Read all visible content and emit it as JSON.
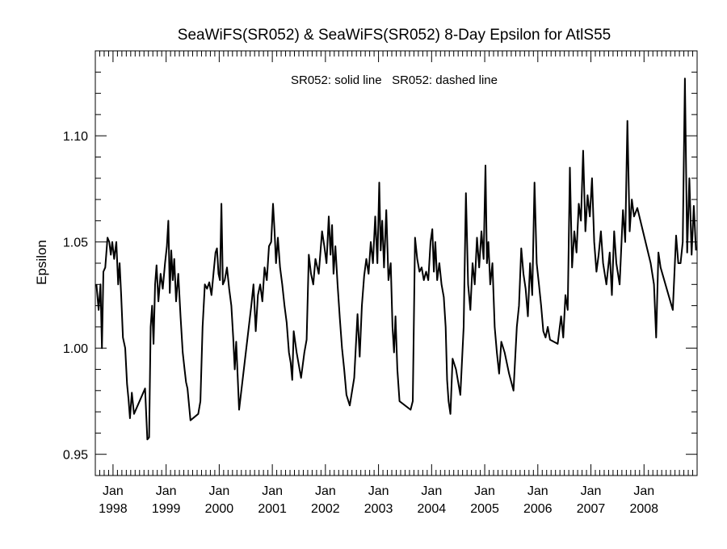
{
  "chart_data": {
    "type": "line",
    "title": "SeaWiFS(SR052) & SeaWiFS(SR052) 8-Day Epsilon for AtlS55",
    "annotation": "SR052: solid line   SR052: dashed line",
    "xlabel": "",
    "ylabel": "Epsilon",
    "xlim": [
      "1997-09",
      "2008-12"
    ],
    "ylim": [
      0.94,
      1.14
    ],
    "grid": false,
    "y_ticks": [
      {
        "value": 0.95,
        "label": "0.95"
      },
      {
        "value": 1.0,
        "label": "1.00"
      },
      {
        "value": 1.05,
        "label": "1.05"
      },
      {
        "value": 1.1,
        "label": "1.10"
      }
    ],
    "x_ticks": [
      {
        "month": "Jan",
        "year": "1998",
        "date": "1998-01"
      },
      {
        "month": "Jan",
        "year": "1999",
        "date": "1999-01"
      },
      {
        "month": "Jan",
        "year": "2000",
        "date": "2000-01"
      },
      {
        "month": "Jan",
        "year": "2001",
        "date": "2001-01"
      },
      {
        "month": "Jan",
        "year": "2002",
        "date": "2002-01"
      },
      {
        "month": "Jan",
        "year": "2003",
        "date": "2003-01"
      },
      {
        "month": "Jan",
        "year": "2004",
        "date": "2004-01"
      },
      {
        "month": "Jan",
        "year": "2005",
        "date": "2005-01"
      },
      {
        "month": "Jan",
        "year": "2006",
        "date": "2006-01"
      },
      {
        "month": "Jan",
        "year": "2007",
        "date": "2007-01"
      },
      {
        "month": "Jan",
        "year": "2008",
        "date": "2008-01"
      }
    ],
    "series": [
      {
        "style": "solid",
        "color": "#000000",
        "points": [
          [
            "1997-09",
            1.03
          ],
          [
            "1997-09",
            1.018
          ],
          [
            "1997-10",
            1.03
          ],
          [
            "1997-10",
            1.0
          ],
          [
            "1997-10",
            1.036
          ],
          [
            "1997-11",
            1.038
          ],
          [
            "1997-11",
            1.052
          ],
          [
            "1997-12",
            1.05
          ],
          [
            "1997-12",
            1.044
          ],
          [
            "1997-12",
            1.05
          ],
          [
            "1998-01",
            1.042
          ],
          [
            "1998-01",
            1.05
          ],
          [
            "1998-02",
            1.03
          ],
          [
            "1998-02",
            1.04
          ],
          [
            "1998-02",
            1.025
          ],
          [
            "1998-03",
            1.005
          ],
          [
            "1998-03",
            1.0
          ],
          [
            "1998-04",
            0.983
          ],
          [
            "1998-04",
            0.976
          ],
          [
            "1998-04",
            0.967
          ],
          [
            "1998-05",
            0.979
          ],
          [
            "1998-05",
            0.969
          ],
          [
            "1998-08",
            0.981
          ],
          [
            "1998-08",
            0.957
          ],
          [
            "1998-09",
            0.958
          ],
          [
            "1998-09",
            1.01
          ],
          [
            "1998-09",
            1.02
          ],
          [
            "1998-10",
            1.002
          ],
          [
            "1998-10",
            1.03
          ],
          [
            "1998-10",
            1.039
          ],
          [
            "1998-11",
            1.022
          ],
          [
            "1998-11",
            1.035
          ],
          [
            "1998-12",
            1.028
          ],
          [
            "1998-12",
            1.04
          ],
          [
            "1999-01",
            1.048
          ],
          [
            "1999-01",
            1.06
          ],
          [
            "1999-01",
            1.026
          ],
          [
            "1999-02",
            1.046
          ],
          [
            "1999-02",
            1.032
          ],
          [
            "1999-02",
            1.042
          ],
          [
            "1999-03",
            1.022
          ],
          [
            "1999-03",
            1.035
          ],
          [
            "1999-04",
            1.015
          ],
          [
            "1999-04",
            0.998
          ],
          [
            "1999-05",
            0.99
          ],
          [
            "1999-05",
            0.984
          ],
          [
            "1999-05",
            0.981
          ],
          [
            "1999-06",
            0.966
          ],
          [
            "1999-08",
            0.969
          ],
          [
            "1999-08",
            0.975
          ],
          [
            "1999-09",
            1.01
          ],
          [
            "1999-09",
            1.03
          ],
          [
            "1999-10",
            1.028
          ],
          [
            "1999-10",
            1.031
          ],
          [
            "1999-11",
            1.025
          ],
          [
            "1999-11",
            1.036
          ],
          [
            "1999-12",
            1.045
          ],
          [
            "1999-12",
            1.047
          ],
          [
            "1999-12",
            1.035
          ],
          [
            "2000-01",
            1.032
          ],
          [
            "2000-01",
            1.068
          ],
          [
            "2000-01",
            1.03
          ],
          [
            "2000-02",
            1.032
          ],
          [
            "2000-02",
            1.038
          ],
          [
            "2000-03",
            1.028
          ],
          [
            "2000-03",
            1.02
          ],
          [
            "2000-04",
            1.005
          ],
          [
            "2000-04",
            0.99
          ],
          [
            "2000-04",
            1.003
          ],
          [
            "2000-05",
            0.971
          ],
          [
            "2000-08",
            1.02
          ],
          [
            "2000-08",
            1.03
          ],
          [
            "2000-09",
            1.008
          ],
          [
            "2000-09",
            1.025
          ],
          [
            "2000-10",
            1.03
          ],
          [
            "2000-10",
            1.022
          ],
          [
            "2000-11",
            1.038
          ],
          [
            "2000-11",
            1.032
          ],
          [
            "2000-12",
            1.048
          ],
          [
            "2000-12",
            1.05
          ],
          [
            "2001-01",
            1.068
          ],
          [
            "2001-01",
            1.055
          ],
          [
            "2001-01",
            1.04
          ],
          [
            "2001-02",
            1.052
          ],
          [
            "2001-02",
            1.038
          ],
          [
            "2001-03",
            1.03
          ],
          [
            "2001-03",
            1.02
          ],
          [
            "2001-04",
            1.012
          ],
          [
            "2001-04",
            0.998
          ],
          [
            "2001-05",
            0.993
          ],
          [
            "2001-05",
            0.985
          ],
          [
            "2001-05",
            1.008
          ],
          [
            "2001-06",
            0.998
          ],
          [
            "2001-07",
            0.986
          ],
          [
            "2001-08",
            0.998
          ],
          [
            "2001-08",
            1.004
          ],
          [
            "2001-09",
            1.044
          ],
          [
            "2001-09",
            1.035
          ],
          [
            "2001-10",
            1.03
          ],
          [
            "2001-10",
            1.042
          ],
          [
            "2001-11",
            1.035
          ],
          [
            "2001-12",
            1.055
          ],
          [
            "2001-12",
            1.048
          ],
          [
            "2002-01",
            1.04
          ],
          [
            "2002-01",
            1.062
          ],
          [
            "2002-02",
            1.044
          ],
          [
            "2002-02",
            1.058
          ],
          [
            "2002-02",
            1.035
          ],
          [
            "2002-03",
            1.048
          ],
          [
            "2002-03",
            1.03
          ],
          [
            "2002-04",
            1.014
          ],
          [
            "2002-04",
            1.0
          ],
          [
            "2002-05",
            0.99
          ],
          [
            "2002-05",
            0.978
          ],
          [
            "2002-06",
            0.973
          ],
          [
            "2002-07",
            0.986
          ],
          [
            "2002-08",
            1.016
          ],
          [
            "2002-08",
            0.996
          ],
          [
            "2002-09",
            1.02
          ],
          [
            "2002-09",
            1.034
          ],
          [
            "2002-10",
            1.042
          ],
          [
            "2002-10",
            1.035
          ],
          [
            "2002-11",
            1.05
          ],
          [
            "2002-11",
            1.04
          ],
          [
            "2002-12",
            1.062
          ],
          [
            "2002-12",
            1.04
          ],
          [
            "2003-01",
            1.078
          ],
          [
            "2003-01",
            1.046
          ],
          [
            "2003-01",
            1.06
          ],
          [
            "2003-02",
            1.038
          ],
          [
            "2003-02",
            1.065
          ],
          [
            "2003-03",
            1.032
          ],
          [
            "2003-03",
            1.04
          ],
          [
            "2003-04",
            1.01
          ],
          [
            "2003-04",
            0.998
          ],
          [
            "2003-04",
            1.015
          ],
          [
            "2003-05",
            0.99
          ],
          [
            "2003-05",
            0.975
          ],
          [
            "2003-08",
            0.971
          ],
          [
            "2003-08",
            0.975
          ],
          [
            "2003-09",
            1.052
          ],
          [
            "2003-09",
            1.042
          ],
          [
            "2003-10",
            1.036
          ],
          [
            "2003-10",
            1.038
          ],
          [
            "2003-11",
            1.032
          ],
          [
            "2003-11",
            1.036
          ],
          [
            "2003-12",
            1.032
          ],
          [
            "2003-12",
            1.05
          ],
          [
            "2004-01",
            1.056
          ],
          [
            "2004-01",
            1.036
          ],
          [
            "2004-01",
            1.05
          ],
          [
            "2004-02",
            1.032
          ],
          [
            "2004-02",
            1.04
          ],
          [
            "2004-03",
            1.03
          ],
          [
            "2004-03",
            1.024
          ],
          [
            "2004-04",
            1.01
          ],
          [
            "2004-04",
            0.985
          ],
          [
            "2004-04",
            0.975
          ],
          [
            "2004-05",
            0.969
          ],
          [
            "2004-05",
            0.995
          ],
          [
            "2004-06",
            0.99
          ],
          [
            "2004-07",
            0.978
          ],
          [
            "2004-08",
            1.01
          ],
          [
            "2004-08",
            1.073
          ],
          [
            "2004-09",
            1.03
          ],
          [
            "2004-09",
            1.018
          ],
          [
            "2004-10",
            1.04
          ],
          [
            "2004-10",
            1.03
          ],
          [
            "2004-11",
            1.052
          ],
          [
            "2004-11",
            1.038
          ],
          [
            "2004-12",
            1.055
          ],
          [
            "2004-12",
            1.042
          ],
          [
            "2005-01",
            1.086
          ],
          [
            "2005-01",
            1.04
          ],
          [
            "2005-01",
            1.05
          ],
          [
            "2005-02",
            1.03
          ],
          [
            "2005-02",
            1.04
          ],
          [
            "2005-03",
            1.01
          ],
          [
            "2005-03",
            0.998
          ],
          [
            "2005-04",
            0.988
          ],
          [
            "2005-04",
            1.003
          ],
          [
            "2005-05",
            0.998
          ],
          [
            "2005-06",
            0.988
          ],
          [
            "2005-07",
            0.98
          ],
          [
            "2005-08",
            1.01
          ],
          [
            "2005-08",
            1.02
          ],
          [
            "2005-09",
            1.047
          ],
          [
            "2005-09",
            1.035
          ],
          [
            "2005-10",
            1.028
          ],
          [
            "2005-10",
            1.015
          ],
          [
            "2005-11",
            1.04
          ],
          [
            "2005-11",
            1.025
          ],
          [
            "2005-12",
            1.078
          ],
          [
            "2005-12",
            1.04
          ],
          [
            "2006-01",
            1.03
          ],
          [
            "2006-01",
            1.02
          ],
          [
            "2006-02",
            1.008
          ],
          [
            "2006-02",
            1.005
          ],
          [
            "2006-03",
            1.01
          ],
          [
            "2006-03",
            1.004
          ],
          [
            "2006-05",
            1.002
          ],
          [
            "2006-06",
            1.015
          ],
          [
            "2006-06",
            1.005
          ],
          [
            "2006-07",
            1.025
          ],
          [
            "2006-07",
            1.018
          ],
          [
            "2006-08",
            1.085
          ],
          [
            "2006-08",
            1.038
          ],
          [
            "2006-09",
            1.055
          ],
          [
            "2006-09",
            1.045
          ],
          [
            "2006-10",
            1.068
          ],
          [
            "2006-10",
            1.06
          ],
          [
            "2006-11",
            1.093
          ],
          [
            "2006-11",
            1.055
          ],
          [
            "2006-12",
            1.072
          ],
          [
            "2006-12",
            1.062
          ],
          [
            "2007-01",
            1.08
          ],
          [
            "2007-01",
            1.05
          ],
          [
            "2007-02",
            1.036
          ],
          [
            "2007-02",
            1.044
          ],
          [
            "2007-03",
            1.055
          ],
          [
            "2007-03",
            1.04
          ],
          [
            "2007-04",
            1.03
          ],
          [
            "2007-05",
            1.045
          ],
          [
            "2007-05",
            1.025
          ],
          [
            "2007-06",
            1.055
          ],
          [
            "2007-06",
            1.04
          ],
          [
            "2007-07",
            1.03
          ],
          [
            "2007-08",
            1.065
          ],
          [
            "2007-08",
            1.05
          ],
          [
            "2007-09",
            1.107
          ],
          [
            "2007-09",
            1.055
          ],
          [
            "2007-10",
            1.07
          ],
          [
            "2007-10",
            1.062
          ],
          [
            "2007-11",
            1.066
          ],
          [
            "2008-02",
            1.04
          ],
          [
            "2008-03",
            1.03
          ],
          [
            "2008-03",
            1.005
          ],
          [
            "2008-04",
            1.045
          ],
          [
            "2008-04",
            1.038
          ],
          [
            "2008-07",
            1.018
          ],
          [
            "2008-08",
            1.053
          ],
          [
            "2008-08",
            1.04
          ],
          [
            "2008-09",
            1.04
          ],
          [
            "2008-09",
            1.05
          ],
          [
            "2008-10",
            1.127
          ],
          [
            "2008-10",
            1.045
          ],
          [
            "2008-11",
            1.08
          ],
          [
            "2008-11",
            1.044
          ],
          [
            "2008-12",
            1.067
          ],
          [
            "2008-12",
            1.046
          ]
        ]
      }
    ]
  }
}
